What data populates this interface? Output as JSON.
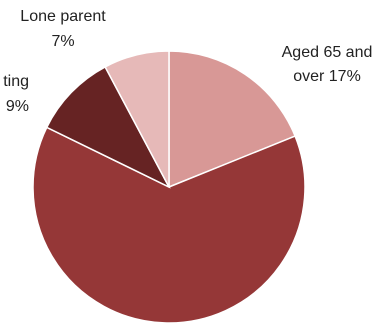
{
  "chart_data": {
    "type": "pie",
    "title": "",
    "start_angle_deg": 0,
    "direction": "clockwise",
    "slices": [
      {
        "name": "Aged 65 and over",
        "value_label": "17%",
        "value": 17,
        "color": "#d89896",
        "label_lines": [
          "Aged 65 and",
          "over 17%"
        ]
      },
      {
        "name": "",
        "value_label": "",
        "value": 57,
        "color": "#953737",
        "label_lines": []
      },
      {
        "name": "...ting",
        "value_label": "9%",
        "value": 9,
        "color": "#662323",
        "label_lines": [
          "ting",
          "9%"
        ]
      },
      {
        "name": "Lone parent",
        "value_label": "7%",
        "value": 7,
        "color": "#e6b9b8",
        "label_lines": [
          "Lone parent",
          "7%"
        ]
      }
    ]
  }
}
